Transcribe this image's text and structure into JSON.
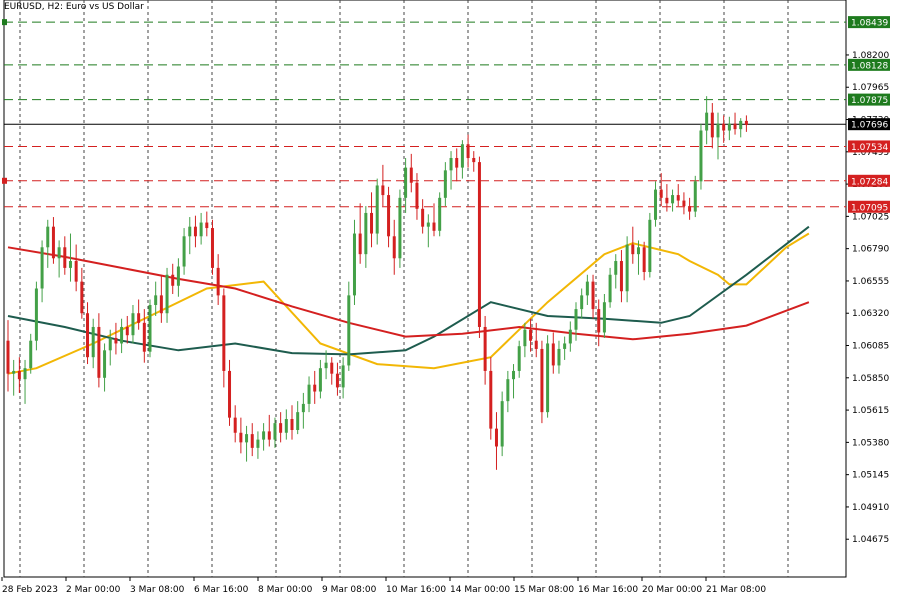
{
  "chart_data": {
    "type": "candlestick",
    "title": "EURUSD, H2:  Euro vs US Dollar",
    "ylim": [
      1.044,
      1.086
    ],
    "y_ticks": [
      "1.08200",
      "1.07965",
      "1.07730",
      "1.07495",
      "1.07260",
      "1.07025",
      "1.06790",
      "1.06555",
      "1.06320",
      "1.06085",
      "1.05850",
      "1.05615",
      "1.05380",
      "1.05145",
      "1.04910",
      "1.04675"
    ],
    "x_ticks": [
      "28 Feb 2023",
      "2 Mar 00:00",
      "3 Mar 08:00",
      "6 Mar 16:00",
      "8 Mar 00:00",
      "9 Mar 08:00",
      "10 Mar 16:00",
      "14 Mar 00:00",
      "15 Mar 08:00",
      "16 Mar 16:00",
      "20 Mar 00:00",
      "21 Mar 08:00"
    ],
    "current_price": "1.07696",
    "levels": [
      {
        "price": 1.08439,
        "label": "1.08439",
        "color": "#1e7b1e"
      },
      {
        "price": 1.08128,
        "label": "1.08128",
        "color": "#1e7b1e"
      },
      {
        "price": 1.07875,
        "label": "1.07875",
        "color": "#1e7b1e"
      },
      {
        "price": 1.07534,
        "label": "1.07534",
        "color": "#d42020"
      },
      {
        "price": 1.07284,
        "label": "1.07284",
        "color": "#d42020"
      },
      {
        "price": 1.07095,
        "label": "1.07095",
        "color": "#d42020"
      }
    ],
    "series": [
      {
        "color": "#f2b705",
        "x": [
          0,
          5,
          15,
          25,
          35,
          45,
          55,
          65,
          75,
          85,
          95,
          105,
          110,
          118,
          120,
          125,
          127,
          130,
          137,
          141
        ],
        "values": [
          1.0588,
          1.0592,
          1.061,
          1.063,
          1.065,
          1.0655,
          1.061,
          1.0595,
          1.0592,
          1.06,
          1.064,
          1.0675,
          1.0683,
          1.0675,
          1.067,
          1.066,
          1.0653,
          1.0653,
          1.068,
          1.069
        ]
      },
      {
        "color": "#1e5c4e",
        "x": [
          0,
          10,
          20,
          30,
          40,
          50,
          60,
          70,
          75,
          85,
          95,
          105,
          115,
          120,
          130,
          141
        ],
        "values": [
          1.063,
          1.0622,
          1.0612,
          1.0605,
          1.061,
          1.0603,
          1.0602,
          1.0605,
          1.0615,
          1.064,
          1.063,
          1.0628,
          1.0625,
          1.063,
          1.066,
          1.0695
        ]
      },
      {
        "color": "#d42020",
        "x": [
          0,
          10,
          20,
          30,
          40,
          50,
          60,
          70,
          80,
          90,
          100,
          110,
          120,
          130,
          141
        ],
        "values": [
          1.068,
          1.0673,
          1.0665,
          1.0657,
          1.065,
          1.0637,
          1.0625,
          1.0615,
          1.0617,
          1.0622,
          1.0617,
          1.0613,
          1.0617,
          1.0623,
          1.064
        ]
      }
    ],
    "candles": [
      [
        0,
        1.0612,
        1.0627,
        1.0575,
        1.0588
      ],
      [
        1,
        1.0588,
        1.0598,
        1.0572,
        1.059
      ],
      [
        2,
        1.059,
        1.06,
        1.0574,
        1.0584
      ],
      [
        3,
        1.0584,
        1.0598,
        1.0566,
        1.0592
      ],
      [
        4,
        1.0592,
        1.0617,
        1.0588,
        1.0612
      ],
      [
        5,
        1.0612,
        1.0655,
        1.0605,
        1.065
      ],
      [
        6,
        1.065,
        1.0685,
        1.064,
        1.068
      ],
      [
        7,
        1.068,
        1.07,
        1.0665,
        1.0695
      ],
      [
        8,
        1.0695,
        1.0702,
        1.0668,
        1.0672
      ],
      [
        9,
        1.0672,
        1.0685,
        1.0658,
        1.068
      ],
      [
        10,
        1.068,
        1.0688,
        1.066,
        1.0665
      ],
      [
        11,
        1.0665,
        1.069,
        1.0655,
        1.067
      ],
      [
        12,
        1.067,
        1.0682,
        1.0648,
        1.0655
      ],
      [
        13,
        1.0655,
        1.0665,
        1.0628,
        1.0632
      ],
      [
        14,
        1.0632,
        1.064,
        1.0595,
        1.06
      ],
      [
        15,
        1.06,
        1.0628,
        1.0592,
        1.0622
      ],
      [
        16,
        1.0622,
        1.0632,
        1.0578,
        1.0585
      ],
      [
        17,
        1.0585,
        1.061,
        1.0575,
        1.0605
      ],
      [
        18,
        1.0605,
        1.062,
        1.0594,
        1.0614
      ],
      [
        19,
        1.0614,
        1.0625,
        1.0602,
        1.061
      ],
      [
        20,
        1.061,
        1.0628,
        1.0603,
        1.0622
      ],
      [
        21,
        1.0622,
        1.063,
        1.061,
        1.0616
      ],
      [
        22,
        1.0616,
        1.0638,
        1.061,
        1.0632
      ],
      [
        23,
        1.0632,
        1.0642,
        1.062,
        1.0625
      ],
      [
        24,
        1.0625,
        1.0635,
        1.0596,
        1.0604
      ],
      [
        25,
        1.0604,
        1.0642,
        1.06,
        1.0638
      ],
      [
        26,
        1.0638,
        1.0655,
        1.063,
        1.0645
      ],
      [
        27,
        1.0645,
        1.066,
        1.0625,
        1.0632
      ],
      [
        28,
        1.0632,
        1.0665,
        1.0625,
        1.066
      ],
      [
        29,
        1.066,
        1.0668,
        1.0646,
        1.0652
      ],
      [
        30,
        1.0652,
        1.0672,
        1.0644,
        1.0666
      ],
      [
        31,
        1.0666,
        1.0694,
        1.066,
        1.0688
      ],
      [
        32,
        1.0688,
        1.0702,
        1.0675,
        1.0695
      ],
      [
        33,
        1.0695,
        1.0703,
        1.068,
        1.0688
      ],
      [
        34,
        1.0688,
        1.0705,
        1.0682,
        1.0698
      ],
      [
        35,
        1.0698,
        1.0706,
        1.0688,
        1.0694
      ],
      [
        36,
        1.0694,
        1.07,
        1.066,
        1.0665
      ],
      [
        37,
        1.0665,
        1.0675,
        1.0638,
        1.0645
      ],
      [
        38,
        1.0645,
        1.065,
        1.0578,
        1.059
      ],
      [
        39,
        1.059,
        1.0598,
        1.055,
        1.0556
      ],
      [
        40,
        1.0556,
        1.0565,
        1.0538,
        1.0545
      ],
      [
        41,
        1.0545,
        1.0556,
        1.053,
        1.0538
      ],
      [
        42,
        1.0538,
        1.055,
        1.0524,
        1.0544
      ],
      [
        43,
        1.0544,
        1.0552,
        1.0528,
        1.0534
      ],
      [
        44,
        1.0534,
        1.0546,
        1.0526,
        1.054
      ],
      [
        45,
        1.054,
        1.0552,
        1.0532,
        1.0546
      ],
      [
        46,
        1.0546,
        1.0558,
        1.0535,
        1.054
      ],
      [
        47,
        1.054,
        1.0556,
        1.0534,
        1.0552
      ],
      [
        48,
        1.0552,
        1.056,
        1.0538,
        1.0545
      ],
      [
        49,
        1.0545,
        1.0562,
        1.054,
        1.0555
      ],
      [
        50,
        1.0555,
        1.0565,
        1.054,
        1.0547
      ],
      [
        51,
        1.0547,
        1.0568,
        1.0544,
        1.056
      ],
      [
        52,
        1.056,
        1.0574,
        1.0548,
        1.0566
      ],
      [
        53,
        1.0566,
        1.0586,
        1.056,
        1.058
      ],
      [
        54,
        1.058,
        1.059,
        1.0566,
        1.0575
      ],
      [
        55,
        1.0575,
        1.0598,
        1.057,
        1.0592
      ],
      [
        56,
        1.0592,
        1.0605,
        1.0584,
        1.0596
      ],
      [
        57,
        1.0596,
        1.06,
        1.058,
        1.0588
      ],
      [
        58,
        1.0588,
        1.0596,
        1.0572,
        1.0578
      ],
      [
        59,
        1.0578,
        1.06,
        1.057,
        1.0594
      ],
      [
        60,
        1.0594,
        1.0655,
        1.059,
        1.0645
      ],
      [
        61,
        1.0645,
        1.07,
        1.0638,
        1.069
      ],
      [
        62,
        1.069,
        1.0712,
        1.0668,
        1.0675
      ],
      [
        63,
        1.0675,
        1.071,
        1.0665,
        1.0705
      ],
      [
        64,
        1.0705,
        1.072,
        1.068,
        1.069
      ],
      [
        65,
        1.069,
        1.073,
        1.0682,
        1.0725
      ],
      [
        66,
        1.0725,
        1.074,
        1.071,
        1.0718
      ],
      [
        67,
        1.0718,
        1.0724,
        1.068,
        1.0688
      ],
      [
        68,
        1.0688,
        1.07,
        1.066,
        1.0672
      ],
      [
        69,
        1.0672,
        1.0722,
        1.0665,
        1.0716
      ],
      [
        70,
        1.0716,
        1.0745,
        1.0705,
        1.0738
      ],
      [
        71,
        1.0738,
        1.0748,
        1.072,
        1.0727
      ],
      [
        72,
        1.0727,
        1.0734,
        1.07,
        1.0708
      ],
      [
        73,
        1.0708,
        1.0715,
        1.069,
        1.0695
      ],
      [
        74,
        1.0695,
        1.0704,
        1.068,
        1.0698
      ],
      [
        75,
        1.0698,
        1.0712,
        1.0688,
        1.0692
      ],
      [
        76,
        1.0692,
        1.072,
        1.0688,
        1.0716
      ],
      [
        77,
        1.0716,
        1.0742,
        1.071,
        1.0736
      ],
      [
        78,
        1.0736,
        1.075,
        1.0722,
        1.0745
      ],
      [
        79,
        1.0745,
        1.0752,
        1.0728,
        1.0738
      ],
      [
        80,
        1.0738,
        1.0758,
        1.073,
        1.0755
      ],
      [
        81,
        1.0755,
        1.0762,
        1.0738,
        1.0745
      ],
      [
        82,
        1.0745,
        1.075,
        1.0735,
        1.0742
      ],
      [
        83,
        1.0742,
        1.0746,
        1.0614,
        1.0622
      ],
      [
        84,
        1.0622,
        1.063,
        1.058,
        1.059
      ],
      [
        85,
        1.059,
        1.06,
        1.054,
        1.0548
      ],
      [
        86,
        1.0548,
        1.056,
        1.0518,
        1.0535
      ],
      [
        87,
        1.0535,
        1.0575,
        1.0528,
        1.0568
      ],
      [
        88,
        1.0568,
        1.059,
        1.056,
        1.0584
      ],
      [
        89,
        1.0584,
        1.0595,
        1.057,
        1.059
      ],
      [
        90,
        1.059,
        1.0612,
        1.0585,
        1.0608
      ],
      [
        91,
        1.0608,
        1.0625,
        1.06,
        1.062
      ],
      [
        92,
        1.062,
        1.0628,
        1.0604,
        1.0612
      ],
      [
        93,
        1.0612,
        1.0625,
        1.06,
        1.0606
      ],
      [
        94,
        1.0606,
        1.0612,
        1.0552,
        1.056
      ],
      [
        95,
        1.056,
        1.0616,
        1.0556,
        1.061
      ],
      [
        96,
        1.061,
        1.0618,
        1.0588,
        1.0594
      ],
      [
        97,
        1.0594,
        1.0612,
        1.0588,
        1.0606
      ],
      [
        98,
        1.0606,
        1.0615,
        1.0598,
        1.061
      ],
      [
        99,
        1.061,
        1.0626,
        1.0604,
        1.062
      ],
      [
        100,
        1.062,
        1.064,
        1.0612,
        1.0635
      ],
      [
        101,
        1.0635,
        1.065,
        1.0628,
        1.0645
      ],
      [
        102,
        1.0645,
        1.066,
        1.0638,
        1.0655
      ],
      [
        103,
        1.0655,
        1.066,
        1.0628,
        1.0635
      ],
      [
        104,
        1.0635,
        1.0642,
        1.0608,
        1.0618
      ],
      [
        105,
        1.0618,
        1.0646,
        1.0614,
        1.064
      ],
      [
        106,
        1.064,
        1.0665,
        1.0636,
        1.066
      ],
      [
        107,
        1.066,
        1.0675,
        1.065,
        1.067
      ],
      [
        108,
        1.067,
        1.0678,
        1.064,
        1.0648
      ],
      [
        109,
        1.0648,
        1.0688,
        1.064,
        1.0682
      ],
      [
        110,
        1.0682,
        1.0695,
        1.0668,
        1.0675
      ],
      [
        111,
        1.0675,
        1.0685,
        1.066,
        1.068
      ],
      [
        112,
        1.068,
        1.0684,
        1.0656,
        1.0662
      ],
      [
        113,
        1.0662,
        1.0705,
        1.0658,
        1.07
      ],
      [
        114,
        1.07,
        1.0728,
        1.0695,
        1.0722
      ],
      [
        115,
        1.0722,
        1.0734,
        1.071,
        1.0716
      ],
      [
        116,
        1.0716,
        1.0726,
        1.0706,
        1.0712
      ],
      [
        117,
        1.0712,
        1.0722,
        1.0706,
        1.0718
      ],
      [
        118,
        1.0718,
        1.0726,
        1.071,
        1.0714
      ],
      [
        119,
        1.0714,
        1.072,
        1.0704,
        1.071
      ],
      [
        120,
        1.071,
        1.0716,
        1.07,
        1.0706
      ],
      [
        121,
        1.0706,
        1.0732,
        1.0702,
        1.0728
      ],
      [
        122,
        1.0728,
        1.077,
        1.0722,
        1.0765
      ],
      [
        123,
        1.0765,
        1.079,
        1.0755,
        1.0778
      ],
      [
        124,
        1.0778,
        1.0785,
        1.0752,
        1.076
      ],
      [
        125,
        1.076,
        1.0778,
        1.0744,
        1.077
      ],
      [
        126,
        1.077,
        1.0776,
        1.0756,
        1.0765
      ],
      [
        127,
        1.0765,
        1.0775,
        1.0758,
        1.077
      ],
      [
        128,
        1.077,
        1.0778,
        1.0762,
        1.0766
      ],
      [
        129,
        1.0766,
        1.0774,
        1.076,
        1.0772
      ],
      [
        130,
        1.0772,
        1.0776,
        1.0764,
        1.0769
      ]
    ]
  }
}
